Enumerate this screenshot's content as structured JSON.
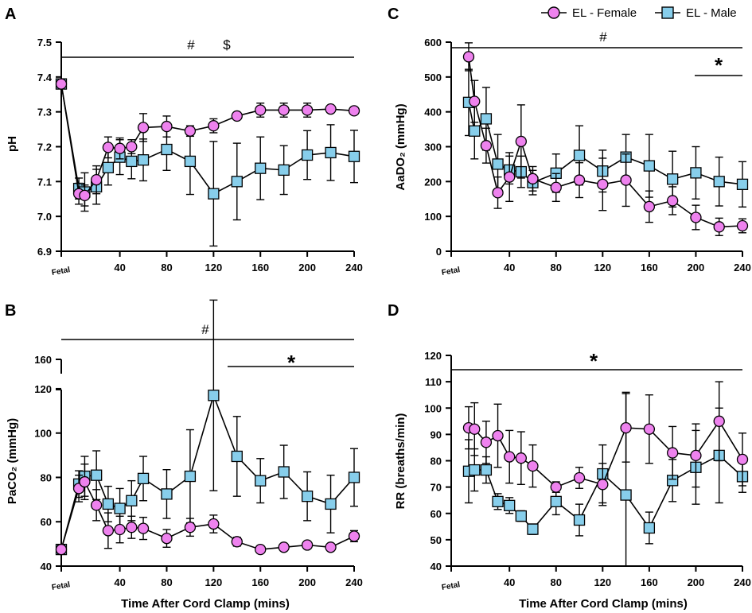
{
  "legend": {
    "female_label": "EL - Female",
    "male_label": "EL - Male",
    "female_color": "#ee82ee",
    "male_color": "#87ceeb"
  },
  "chart_data": [
    {
      "id": "A",
      "type": "line",
      "panel_label": "A",
      "ylabel": "pH",
      "xlabel": "",
      "ylim": [
        6.9,
        7.5
      ],
      "yticks": [
        6.9,
        7.0,
        7.1,
        7.2,
        7.3,
        7.4,
        7.5
      ],
      "ytick_labels": [
        "6.9",
        "7.0",
        "7.1",
        "7.2",
        "7.3",
        "7.4",
        "7.5"
      ],
      "xlim": [
        -10,
        240
      ],
      "xticks": [
        -10,
        40,
        80,
        120,
        160,
        200,
        240
      ],
      "xtick_labels": [
        "Fetal",
        "40",
        "80",
        "120",
        "160",
        "200",
        "240"
      ],
      "significance": [
        {
          "symbol": "#",
          "x_from": -10,
          "x_to": 240,
          "y": 7.455
        },
        {
          "symbol": "$",
          "x_from": null,
          "x_to": null,
          "y": 7.455
        }
      ],
      "series": [
        {
          "name": "EL - Female",
          "x": [
            -10,
            5,
            10,
            20,
            30,
            40,
            50,
            60,
            80,
            100,
            120,
            140,
            160,
            180,
            200,
            220,
            240
          ],
          "y": [
            7.38,
            7.065,
            7.06,
            7.105,
            7.198,
            7.195,
            7.2,
            7.255,
            7.258,
            7.245,
            7.26,
            7.288,
            7.305,
            7.305,
            7.305,
            7.308,
            7.303
          ],
          "err": [
            0,
            0.03,
            0.03,
            0.04,
            0.03,
            0.03,
            0.02,
            0.04,
            0.03,
            0.015,
            0.02,
            0.01,
            0.02,
            0.02,
            0.02,
            0.01,
            0.01
          ]
        },
        {
          "name": "EL - Male",
          "x": [
            -10,
            5,
            10,
            20,
            30,
            40,
            50,
            60,
            80,
            100,
            120,
            140,
            160,
            180,
            200,
            220,
            240
          ],
          "y": [
            7.38,
            7.08,
            7.07,
            7.085,
            7.14,
            7.17,
            7.158,
            7.162,
            7.192,
            7.158,
            7.065,
            7.1,
            7.138,
            7.133,
            7.176,
            7.183,
            7.172
          ],
          "err": [
            0,
            0.03,
            0.055,
            0.05,
            0.05,
            0.05,
            0.05,
            0.06,
            0.06,
            0.095,
            0.15,
            0.11,
            0.09,
            0.07,
            0.07,
            0.08,
            0.075
          ]
        }
      ]
    },
    {
      "id": "B",
      "type": "line",
      "panel_label": "B",
      "ylabel": "PaCO₂ (mmHg)",
      "xlabel": "Time After Cord Clamp (mins)",
      "ylim": [
        40,
        125
      ],
      "ybreak": {
        "upper_tick": 160,
        "upper_label": "160"
      },
      "yticks": [
        40,
        60,
        80,
        100,
        120
      ],
      "ytick_labels": [
        "40",
        "60",
        "80",
        "100",
        "120"
      ],
      "xlim": [
        -10,
        240
      ],
      "xticks": [
        -10,
        40,
        80,
        120,
        160,
        200,
        240
      ],
      "xtick_labels": [
        "Fetal",
        "40",
        "80",
        "120",
        "160",
        "200",
        "240"
      ],
      "significance": [
        {
          "symbol": "#",
          "x_from": -10,
          "x_to": 240
        },
        {
          "symbol": "*",
          "x_from": 140,
          "x_to": 240
        }
      ],
      "series": [
        {
          "name": "EL - Female",
          "x": [
            -10,
            5,
            10,
            20,
            30,
            40,
            50,
            60,
            80,
            100,
            120,
            140,
            160,
            180,
            200,
            220,
            240
          ],
          "y": [
            47.5,
            75,
            78,
            67.5,
            56,
            56.5,
            57.5,
            57,
            52.5,
            57.5,
            59,
            51,
            47.5,
            48.5,
            49.5,
            48.5,
            53.5
          ],
          "err": [
            2,
            6,
            8,
            7,
            8,
            6,
            5,
            5,
            4,
            4,
            4,
            2,
            1,
            1,
            1,
            1,
            2.5
          ]
        },
        {
          "name": "EL - Male",
          "x": [
            -10,
            5,
            10,
            20,
            30,
            40,
            50,
            60,
            80,
            100,
            120,
            140,
            160,
            180,
            200,
            220,
            240
          ],
          "y": [
            47.5,
            77,
            80.5,
            81,
            68,
            66,
            69.5,
            79.5,
            72.5,
            80.5,
            117,
            89.5,
            78.5,
            82.5,
            71.5,
            68,
            80
          ],
          "err": [
            0,
            6,
            9,
            11,
            8,
            9,
            9,
            10,
            11,
            21,
            43,
            18,
            10,
            12,
            11,
            13,
            13
          ]
        }
      ]
    },
    {
      "id": "C",
      "type": "line",
      "panel_label": "C",
      "ylabel": "AaDO₂ (mmHg)",
      "xlabel": "",
      "ylim": [
        0,
        600
      ],
      "yticks": [
        0,
        100,
        200,
        300,
        400,
        500,
        600
      ],
      "ytick_labels": [
        "0",
        "100",
        "200",
        "300",
        "400",
        "500",
        "600"
      ],
      "xlim": [
        -10,
        240
      ],
      "xticks": [
        -10,
        40,
        80,
        120,
        160,
        200,
        240
      ],
      "xtick_labels": [
        "Fetal",
        "40",
        "80",
        "120",
        "160",
        "200",
        "240"
      ],
      "significance": [
        {
          "symbol": "#",
          "x_from": -10,
          "x_to": 240
        },
        {
          "symbol": "*",
          "x_from": 200,
          "x_to": 240
        }
      ],
      "series": [
        {
          "name": "EL - Female",
          "x": [
            5,
            10,
            20,
            30,
            40,
            50,
            60,
            80,
            100,
            120,
            140,
            160,
            180,
            200,
            220,
            240
          ],
          "y": [
            558,
            430,
            303,
            168,
            213,
            315,
            208,
            183,
            204,
            192,
            204,
            128,
            145,
            97,
            70,
            73
          ],
          "err": [
            40,
            60,
            50,
            45,
            70,
            105,
            35,
            40,
            50,
            75,
            75,
            45,
            40,
            35,
            25,
            20
          ]
        },
        {
          "name": "EL - Male",
          "x": [
            5,
            10,
            20,
            30,
            40,
            50,
            60,
            80,
            100,
            120,
            140,
            160,
            180,
            200,
            220,
            240
          ],
          "y": [
            427,
            345,
            380,
            250,
            233,
            228,
            197,
            224,
            275,
            230,
            270,
            245,
            207,
            225,
            200,
            192
          ],
          "err": [
            95,
            80,
            90,
            85,
            40,
            45,
            35,
            55,
            85,
            60,
            65,
            90,
            80,
            75,
            70,
            65
          ]
        }
      ]
    },
    {
      "id": "D",
      "type": "line",
      "panel_label": "D",
      "ylabel": "RR (breaths/min)",
      "xlabel": "Time After Cord Clamp (mins)",
      "ylim": [
        40,
        120
      ],
      "yticks": [
        40,
        50,
        60,
        70,
        80,
        90,
        100,
        110,
        120
      ],
      "ytick_labels": [
        "40",
        "50",
        "60",
        "70",
        "80",
        "90",
        "100",
        "110",
        "120"
      ],
      "xlim": [
        -10,
        240
      ],
      "xticks": [
        -10,
        40,
        80,
        120,
        160,
        200,
        240
      ],
      "xtick_labels": [
        "Fetal",
        "40",
        "80",
        "120",
        "160",
        "200",
        "240"
      ],
      "significance": [
        {
          "symbol": "*",
          "x_from": -10,
          "x_to": 240
        }
      ],
      "series": [
        {
          "name": "EL - Female",
          "x": [
            5,
            10,
            20,
            30,
            40,
            50,
            60,
            80,
            100,
            120,
            140,
            160,
            180,
            200,
            220,
            240
          ],
          "y": [
            92.5,
            92,
            87,
            89.5,
            81.5,
            81,
            78,
            70,
            73.5,
            71,
            92.5,
            92,
            83,
            82,
            95,
            80.5
          ],
          "err": [
            8,
            10,
            8,
            12,
            10,
            10,
            8,
            2,
            4,
            8,
            13,
            13,
            10,
            12,
            15,
            10
          ]
        },
        {
          "name": "EL - Male",
          "x": [
            5,
            10,
            20,
            30,
            40,
            50,
            60,
            80,
            100,
            120,
            140,
            160,
            180,
            200,
            220,
            240
          ],
          "y": [
            76,
            76.5,
            76.5,
            64.5,
            63,
            59,
            54,
            64.5,
            57.5,
            75,
            67,
            54.5,
            72.5,
            77.5,
            82,
            74
          ],
          "err": [
            12,
            8,
            5,
            3,
            3,
            2,
            2,
            5,
            6,
            11,
            39,
            6,
            8,
            14,
            18,
            6
          ]
        }
      ]
    }
  ]
}
